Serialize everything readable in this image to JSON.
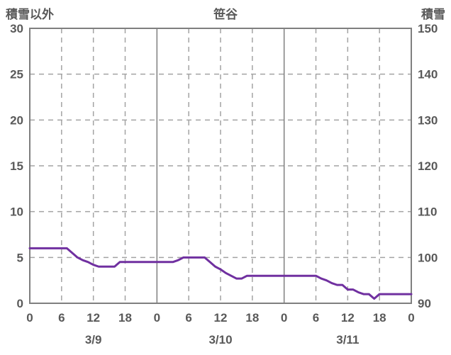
{
  "header": {
    "left_axis_title": "積雪以外",
    "station_name": "笹谷",
    "right_axis_title": "積雪"
  },
  "chart_data": {
    "type": "line",
    "title": "笹谷",
    "left_axis": {
      "title": "積雪以外",
      "min": 0,
      "max": 30,
      "ticks": [
        0,
        5,
        10,
        15,
        20,
        25,
        30
      ]
    },
    "right_axis": {
      "title": "積雪",
      "min": 90,
      "max": 150,
      "ticks": [
        90,
        100,
        110,
        120,
        130,
        140,
        150
      ]
    },
    "x_axis": {
      "hours_total": 72,
      "tick_step_hours": 6,
      "hour_tick_labels": [
        "0",
        "6",
        "12",
        "18",
        "0",
        "6",
        "12",
        "18",
        "0",
        "6",
        "12",
        "18",
        "0"
      ],
      "date_labels": [
        "3/9",
        "3/10",
        "3/11"
      ]
    },
    "grid": {
      "horizontal_dashed_left_values": [
        5,
        10,
        15,
        20,
        25
      ],
      "vertical_dashed_hours": [
        6,
        12,
        18,
        30,
        36,
        42,
        54,
        60,
        66
      ],
      "vertical_solid_hours": [
        24,
        48
      ]
    },
    "series": [
      {
        "name": "積雪",
        "color": "#7030a0",
        "axis": "left",
        "x_start_hour": 0,
        "x_step_hours": 1,
        "values": [
          6,
          6,
          6,
          6,
          6,
          6,
          6,
          6,
          5.5,
          5,
          4.7,
          4.5,
          4.2,
          4,
          4,
          4,
          4,
          4.5,
          4.5,
          4.5,
          4.5,
          4.5,
          4.5,
          4.5,
          4.5,
          4.5,
          4.5,
          4.5,
          4.7,
          5,
          5,
          5,
          5,
          5,
          4.5,
          4,
          3.7,
          3.3,
          3,
          2.7,
          2.7,
          3,
          3,
          3,
          3,
          3,
          3,
          3,
          3,
          3,
          3,
          3,
          3,
          3,
          3,
          2.7,
          2.5,
          2.2,
          2,
          2,
          1.5,
          1.5,
          1.2,
          1,
          1,
          0.5,
          1,
          1,
          1,
          1,
          1,
          1,
          1
        ]
      }
    ]
  },
  "colors": {
    "text": "#595959",
    "border": "#7f7f7f",
    "grid_dashed": "#a3a3a3",
    "line": "#7030a0",
    "background": "#ffffff"
  }
}
